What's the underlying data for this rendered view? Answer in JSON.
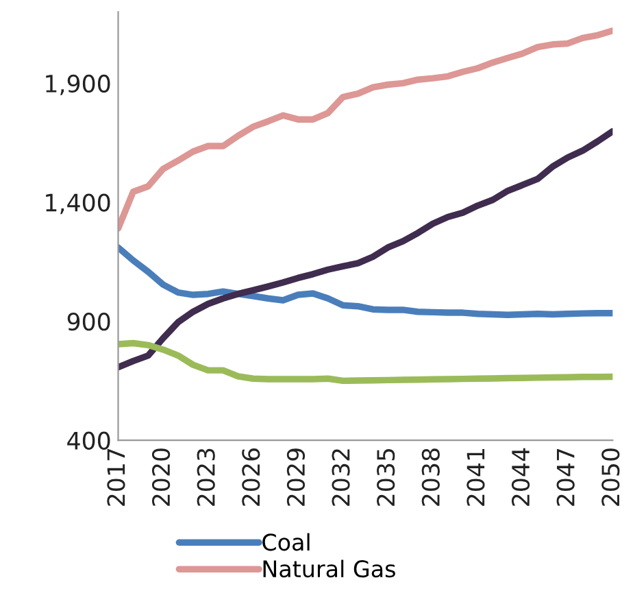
{
  "chart_data": {
    "type": "line",
    "x": [
      2017,
      2018,
      2019,
      2020,
      2021,
      2022,
      2023,
      2024,
      2025,
      2026,
      2027,
      2028,
      2029,
      2030,
      2031,
      2032,
      2033,
      2034,
      2035,
      2036,
      2037,
      2038,
      2039,
      2040,
      2041,
      2042,
      2043,
      2044,
      2045,
      2046,
      2047,
      2048,
      2049,
      2050
    ],
    "series": [
      {
        "name": "Coal",
        "color": "#4a7ebb",
        "values": [
          1210,
          1156,
          1108,
          1054,
          1021,
          1011,
          1015,
          1025,
          1015,
          1006,
          996,
          988,
          1011,
          1017,
          996,
          967,
          963,
          950,
          948,
          948,
          940,
          938,
          936,
          936,
          931,
          929,
          927,
          929,
          931,
          929,
          931,
          933,
          934,
          934
        ]
      },
      {
        "name": "Natural Gas",
        "color": "#dd9795",
        "values": [
          1290,
          1444,
          1467,
          1540,
          1575,
          1613,
          1636,
          1636,
          1679,
          1717,
          1740,
          1765,
          1748,
          1748,
          1775,
          1842,
          1856,
          1883,
          1894,
          1900,
          1915,
          1921,
          1929,
          1948,
          1963,
          1987,
          2006,
          2025,
          2052,
          2063,
          2067,
          2090,
          2102,
          2121
        ]
      },
      {
        "color": "#3f2c4e",
        "values": [
          707,
          733,
          756,
          829,
          896,
          940,
          973,
          996,
          1015,
          1030,
          1046,
          1063,
          1082,
          1098,
          1117,
          1131,
          1144,
          1171,
          1210,
          1236,
          1271,
          1310,
          1338,
          1356,
          1386,
          1410,
          1448,
          1473,
          1498,
          1550,
          1588,
          1617,
          1656,
          1698
        ]
      },
      {
        "color": "#9bbb59",
        "values": [
          804,
          808,
          800,
          781,
          756,
          717,
          694,
          694,
          669,
          659,
          657,
          657,
          657,
          657,
          659,
          650,
          651,
          652,
          653,
          654,
          655,
          656,
          657,
          658,
          659,
          660,
          661,
          662,
          663,
          664,
          665,
          666,
          666,
          667
        ]
      }
    ],
    "xlim": [
      2017,
      2050
    ],
    "xticks": [
      2017,
      2020,
      2023,
      2026,
      2029,
      2032,
      2035,
      2038,
      2041,
      2044,
      2047,
      2050
    ],
    "ylim": [
      400,
      2200
    ],
    "yticks": [
      {
        "value": 400,
        "label": "400"
      },
      {
        "value": 900,
        "label": "900"
      },
      {
        "value": 1400,
        "label": "1,400"
      },
      {
        "value": 1900,
        "label": "1,900"
      }
    ],
    "grid": false,
    "legend": "bottom",
    "marker": "none",
    "line_style": "solid"
  }
}
